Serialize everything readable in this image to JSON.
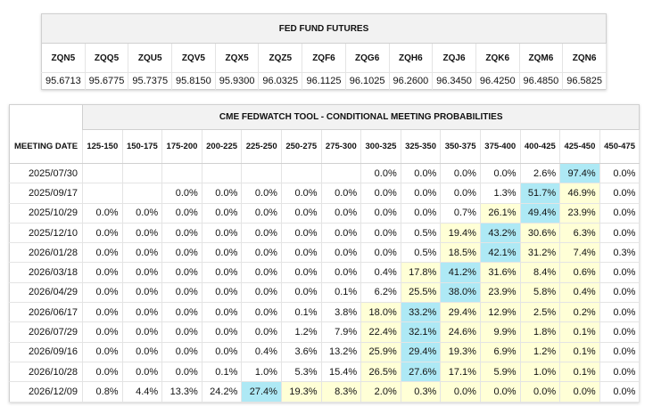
{
  "futures": {
    "title": "FED FUND FUTURES",
    "codes": [
      "ZQN5",
      "ZQQ5",
      "ZQU5",
      "ZQV5",
      "ZQX5",
      "ZQZ5",
      "ZQF6",
      "ZQG6",
      "ZQH6",
      "ZQJ6",
      "ZQK6",
      "ZQM6",
      "ZQN6"
    ],
    "prices": [
      "95.6713",
      "95.6775",
      "95.7375",
      "95.8150",
      "95.9300",
      "96.0325",
      "96.1125",
      "96.1025",
      "96.2600",
      "96.3450",
      "96.4250",
      "96.4850",
      "96.5825"
    ]
  },
  "fedwatch": {
    "title": "CME FEDWATCH TOOL - CONDITIONAL MEETING PROBABILITIES",
    "date_header": "MEETING DATE",
    "ranges": [
      "125-150",
      "150-175",
      "175-200",
      "200-225",
      "225-250",
      "250-275",
      "275-300",
      "300-325",
      "325-350",
      "350-375",
      "375-400",
      "400-425",
      "425-450",
      "450-475"
    ],
    "colors": {
      "highlight": "#ffffd6",
      "max": "#aee9f5"
    },
    "rows": [
      {
        "date": "2025/07/30",
        "values": [
          "",
          "",
          "",
          "",
          "",
          "",
          "",
          "0.0%",
          "0.0%",
          "0.0%",
          "0.0%",
          "2.6%",
          "97.4%",
          "0.0%"
        ],
        "max": 12,
        "hi": []
      },
      {
        "date": "2025/09/17",
        "values": [
          "",
          "",
          "0.0%",
          "0.0%",
          "0.0%",
          "0.0%",
          "0.0%",
          "0.0%",
          "0.0%",
          "0.0%",
          "1.3%",
          "51.7%",
          "46.9%",
          "0.0%"
        ],
        "max": 11,
        "hi": [
          12
        ]
      },
      {
        "date": "2025/10/29",
        "values": [
          "0.0%",
          "0.0%",
          "0.0%",
          "0.0%",
          "0.0%",
          "0.0%",
          "0.0%",
          "0.0%",
          "0.0%",
          "0.7%",
          "26.1%",
          "49.4%",
          "23.9%",
          "0.0%"
        ],
        "max": 11,
        "hi": [
          10,
          12
        ]
      },
      {
        "date": "2025/12/10",
        "values": [
          "0.0%",
          "0.0%",
          "0.0%",
          "0.0%",
          "0.0%",
          "0.0%",
          "0.0%",
          "0.0%",
          "0.5%",
          "19.4%",
          "43.2%",
          "30.6%",
          "6.3%",
          "0.0%"
        ],
        "max": 10,
        "hi": [
          9,
          11,
          12
        ]
      },
      {
        "date": "2026/01/28",
        "values": [
          "0.0%",
          "0.0%",
          "0.0%",
          "0.0%",
          "0.0%",
          "0.0%",
          "0.0%",
          "0.0%",
          "0.5%",
          "18.5%",
          "42.1%",
          "31.2%",
          "7.4%",
          "0.3%"
        ],
        "max": 10,
        "hi": [
          9,
          11,
          12
        ]
      },
      {
        "date": "2026/03/18",
        "values": [
          "0.0%",
          "0.0%",
          "0.0%",
          "0.0%",
          "0.0%",
          "0.0%",
          "0.0%",
          "0.4%",
          "17.8%",
          "41.2%",
          "31.6%",
          "8.4%",
          "0.6%",
          "0.0%"
        ],
        "max": 9,
        "hi": [
          8,
          10,
          11,
          12
        ]
      },
      {
        "date": "2026/04/29",
        "values": [
          "0.0%",
          "0.0%",
          "0.0%",
          "0.0%",
          "0.0%",
          "0.0%",
          "0.1%",
          "6.2%",
          "25.5%",
          "38.0%",
          "23.9%",
          "5.8%",
          "0.4%",
          "0.0%"
        ],
        "max": 9,
        "hi": [
          8,
          10,
          11,
          12
        ]
      },
      {
        "date": "2026/06/17",
        "values": [
          "0.0%",
          "0.0%",
          "0.0%",
          "0.0%",
          "0.0%",
          "0.1%",
          "3.8%",
          "18.0%",
          "33.2%",
          "29.4%",
          "12.9%",
          "2.5%",
          "0.2%",
          "0.0%"
        ],
        "max": 8,
        "hi": [
          7,
          9,
          10,
          11,
          12
        ]
      },
      {
        "date": "2026/07/29",
        "values": [
          "0.0%",
          "0.0%",
          "0.0%",
          "0.0%",
          "0.0%",
          "1.2%",
          "7.9%",
          "22.4%",
          "32.1%",
          "24.6%",
          "9.9%",
          "1.8%",
          "0.1%",
          "0.0%"
        ],
        "max": 8,
        "hi": [
          7,
          9,
          10,
          11,
          12
        ]
      },
      {
        "date": "2026/09/16",
        "values": [
          "0.0%",
          "0.0%",
          "0.0%",
          "0.0%",
          "0.4%",
          "3.6%",
          "13.2%",
          "25.9%",
          "29.4%",
          "19.3%",
          "6.9%",
          "1.2%",
          "0.1%",
          "0.0%"
        ],
        "max": 8,
        "hi": [
          7,
          9,
          10,
          11,
          12
        ]
      },
      {
        "date": "2026/10/28",
        "values": [
          "0.0%",
          "0.0%",
          "0.0%",
          "0.1%",
          "1.0%",
          "5.3%",
          "15.4%",
          "26.5%",
          "27.6%",
          "17.1%",
          "5.9%",
          "1.0%",
          "0.1%",
          "0.0%"
        ],
        "max": 8,
        "hi": [
          7,
          9,
          10,
          11,
          12
        ]
      },
      {
        "date": "2026/12/09",
        "values": [
          "0.8%",
          "4.4%",
          "13.3%",
          "24.2%",
          "27.4%",
          "19.3%",
          "8.3%",
          "2.0%",
          "0.3%",
          "0.0%",
          "0.0%",
          "0.0%",
          "0.0%",
          "0.0%"
        ],
        "max": 4,
        "hi": [
          5,
          6,
          7,
          8,
          9,
          10,
          11,
          12
        ]
      }
    ]
  }
}
